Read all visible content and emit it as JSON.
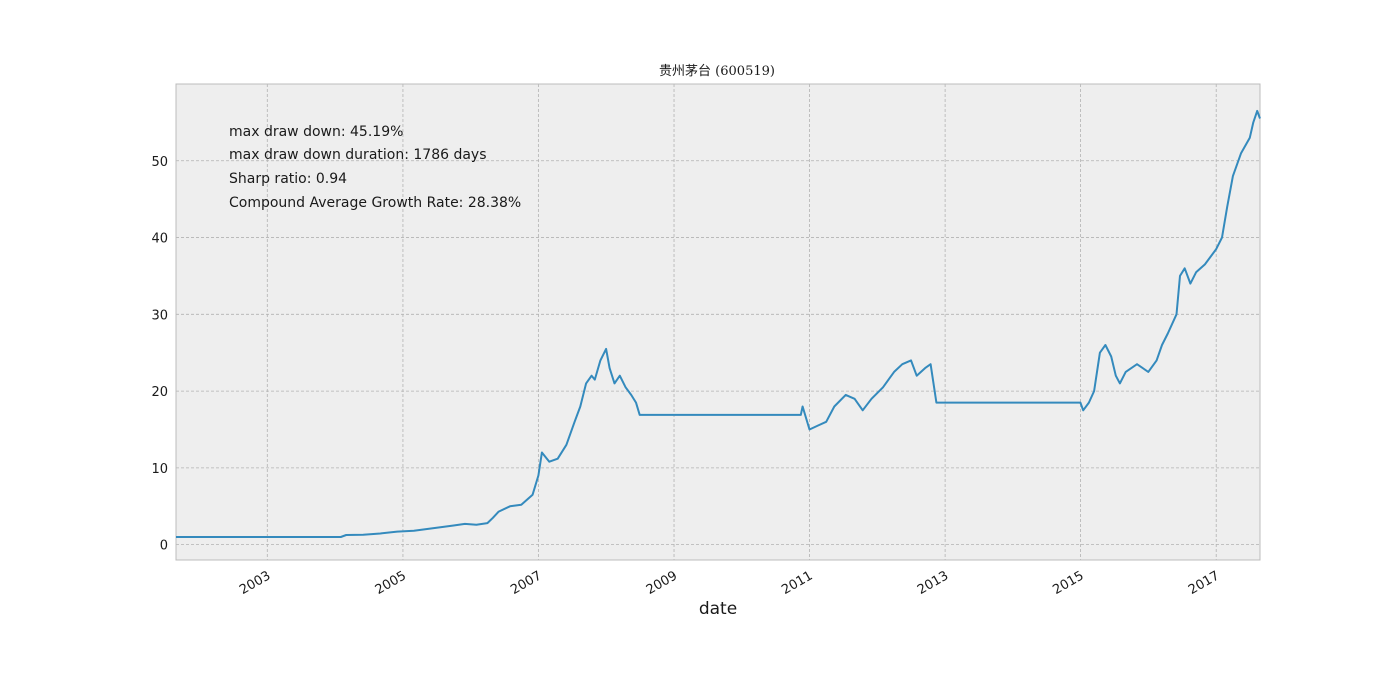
{
  "chart_data": {
    "type": "line",
    "title": "贵州茅台 (600519)",
    "xlabel": "date",
    "ylabel": "",
    "xlim": [
      "2001-08-27",
      "2017-08-25"
    ],
    "ylim": [
      -2,
      60
    ],
    "yticks": [
      0,
      10,
      20,
      30,
      40,
      50
    ],
    "xticks": [
      {
        "date": "2003-01-01",
        "label": "2003"
      },
      {
        "date": "2005-01-01",
        "label": "2005"
      },
      {
        "date": "2007-01-01",
        "label": "2007"
      },
      {
        "date": "2009-01-01",
        "label": "2009"
      },
      {
        "date": "2011-01-01",
        "label": "2011"
      },
      {
        "date": "2013-01-01",
        "label": "2013"
      },
      {
        "date": "2015-01-01",
        "label": "2015"
      },
      {
        "date": "2017-01-01",
        "label": "2017"
      }
    ],
    "grid": true,
    "colors": {
      "line": "#348abd",
      "plot_background": "#eeeeee",
      "grid": "#b2b2b2",
      "frame": "#bcbcbc"
    },
    "annotations": [
      "max draw down: 45.19%",
      "max draw down duration: 1786 days",
      "Sharp ratio: 0.94",
      "Compound Average Growth Rate: 28.38%"
    ],
    "series": [
      {
        "x": [
          "2001-08-27",
          "2004-02-01",
          "2004-03-01",
          "2004-06-01",
          "2004-09-01",
          "2004-12-01",
          "2005-03-01",
          "2005-06-01",
          "2005-08-01",
          "2005-10-01",
          "2005-12-01",
          "2006-02-01",
          "2006-04-01",
          "2006-05-01",
          "2006-06-01",
          "2006-08-01",
          "2006-10-01",
          "2006-12-01",
          "2007-01-01",
          "2007-01-20",
          "2007-03-01",
          "2007-04-15",
          "2007-06-01",
          "2007-07-15",
          "2007-08-15",
          "2007-09-15",
          "2007-10-15",
          "2007-11-01",
          "2007-12-01",
          "2008-01-01",
          "2008-01-20",
          "2008-02-15",
          "2008-03-15",
          "2008-04-15",
          "2008-05-15",
          "2008-06-10",
          "2008-06-30",
          "2010-11-15",
          "2010-11-25",
          "2011-01-01",
          "2011-02-15",
          "2011-04-01",
          "2011-05-15",
          "2011-07-15",
          "2011-09-01",
          "2011-10-15",
          "2011-12-01",
          "2012-02-01",
          "2012-04-01",
          "2012-05-15",
          "2012-07-01",
          "2012-08-01",
          "2012-09-15",
          "2012-10-15",
          "2012-11-15",
          "2012-12-15",
          "2014-12-31",
          "2015-01-15",
          "2015-02-15",
          "2015-03-15",
          "2015-04-15",
          "2015-05-15",
          "2015-06-15",
          "2015-07-10",
          "2015-08-01",
          "2015-09-01",
          "2015-11-01",
          "2016-01-01",
          "2016-02-15",
          "2016-03-15",
          "2016-04-15",
          "2016-06-01",
          "2016-06-20",
          "2016-07-15",
          "2016-08-15",
          "2016-09-15",
          "2016-11-01",
          "2017-01-01",
          "2017-02-01",
          "2017-03-01",
          "2017-04-01",
          "2017-05-15",
          "2017-07-01",
          "2017-07-20",
          "2017-08-10",
          "2017-08-25"
        ],
        "y": [
          1.0,
          1.0,
          1.25,
          1.3,
          1.45,
          1.7,
          1.8,
          2.1,
          2.3,
          2.5,
          2.7,
          2.6,
          2.8,
          3.5,
          4.3,
          5.0,
          5.2,
          6.5,
          9.0,
          12.0,
          10.8,
          11.2,
          13.0,
          16.0,
          18.0,
          21.0,
          22.0,
          21.5,
          24.0,
          25.5,
          23.0,
          21.0,
          22.0,
          20.5,
          19.5,
          18.5,
          16.9,
          16.9,
          18.0,
          15.0,
          15.5,
          16.0,
          18.0,
          19.5,
          19.0,
          17.5,
          19.0,
          20.5,
          22.5,
          23.5,
          24.0,
          22.0,
          23.0,
          23.5,
          18.5,
          18.5,
          18.5,
          17.5,
          18.5,
          20.0,
          25.0,
          26.0,
          24.5,
          22.0,
          21.0,
          22.5,
          23.5,
          22.5,
          24.0,
          26.0,
          27.5,
          30.0,
          35.0,
          36.0,
          34.0,
          35.5,
          36.5,
          38.5,
          40.0,
          44.0,
          48.0,
          51.0,
          53.0,
          55.0,
          56.5,
          55.5
        ]
      }
    ]
  }
}
